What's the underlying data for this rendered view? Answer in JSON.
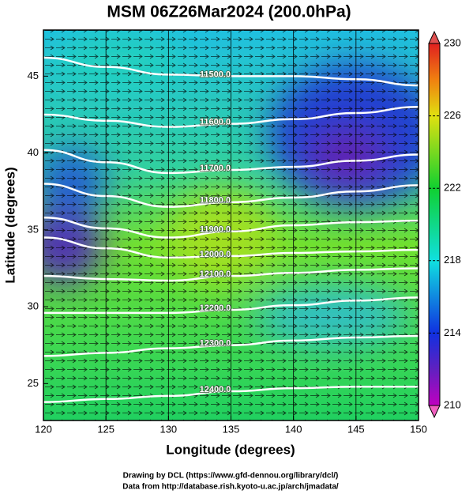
{
  "chart_data": {
    "type": "contour-map",
    "title": "MSM 06Z26Mar2024 (200.0hPa)",
    "x_label": "Longitude (degrees)",
    "y_label": "Latitude  (degrees)",
    "xlim": [
      120,
      150
    ],
    "ylim": [
      22.6,
      48
    ],
    "xticks": [
      120,
      125,
      130,
      135,
      140,
      145,
      150
    ],
    "yticks": [
      25,
      30,
      35,
      40,
      45
    ],
    "colorbar": {
      "lim": [
        210,
        230
      ],
      "ticks": [
        210,
        214,
        218,
        222,
        226,
        230
      ]
    },
    "x": [
      120,
      125,
      130,
      135,
      140,
      145,
      150
    ],
    "contours": [
      {
        "label": "11500.0",
        "color": "#ffffff",
        "values": [
          46.2,
          45.6,
          45.1,
          45.0,
          45.0,
          44.8,
          44.4
        ]
      },
      {
        "label": "11600.0",
        "color": "#ffffff",
        "values": [
          42.5,
          42.1,
          41.7,
          41.9,
          42.2,
          42.6,
          43.0
        ]
      },
      {
        "label": "11700.0",
        "color": "#ffffff",
        "values": [
          40.2,
          39.4,
          38.7,
          38.9,
          39.1,
          39.5,
          39.9
        ]
      },
      {
        "label": "11800.0",
        "color": "#ffffff",
        "values": [
          38.0,
          37.2,
          36.5,
          36.8,
          37.1,
          37.5,
          37.9
        ]
      },
      {
        "label": "11900.0",
        "color": "#ffffff",
        "values": [
          35.8,
          35.1,
          34.5,
          34.9,
          35.3,
          35.5,
          35.6
        ]
      },
      {
        "label": "12000.0",
        "color": "#ffffff",
        "values": [
          34.5,
          33.8,
          33.2,
          33.3,
          33.5,
          33.6,
          33.7
        ]
      },
      {
        "label": "12100.0",
        "color": "#ffffff",
        "values": [
          32.0,
          31.8,
          31.7,
          32.0,
          32.2,
          32.4,
          32.5
        ]
      },
      {
        "label": "12200.0",
        "color": "#ffffff",
        "values": [
          29.6,
          29.6,
          29.6,
          29.8,
          30.1,
          30.4,
          30.6
        ]
      },
      {
        "label": "12300.0",
        "color": "#ffffff",
        "values": [
          26.8,
          27.0,
          27.3,
          27.5,
          27.8,
          28.0,
          28.1
        ]
      },
      {
        "label": "12400.0",
        "color": "#ffffff",
        "values": [
          23.8,
          24.0,
          24.2,
          24.5,
          24.7,
          24.8,
          24.8
        ]
      }
    ],
    "credit_1": "Drawing by DCL (https://www.gfd-dennou.org/library/dcl/)",
    "credit_2": "Data from http://database.rish.kyoto-u.ac.jp/arch/jmadata/"
  }
}
